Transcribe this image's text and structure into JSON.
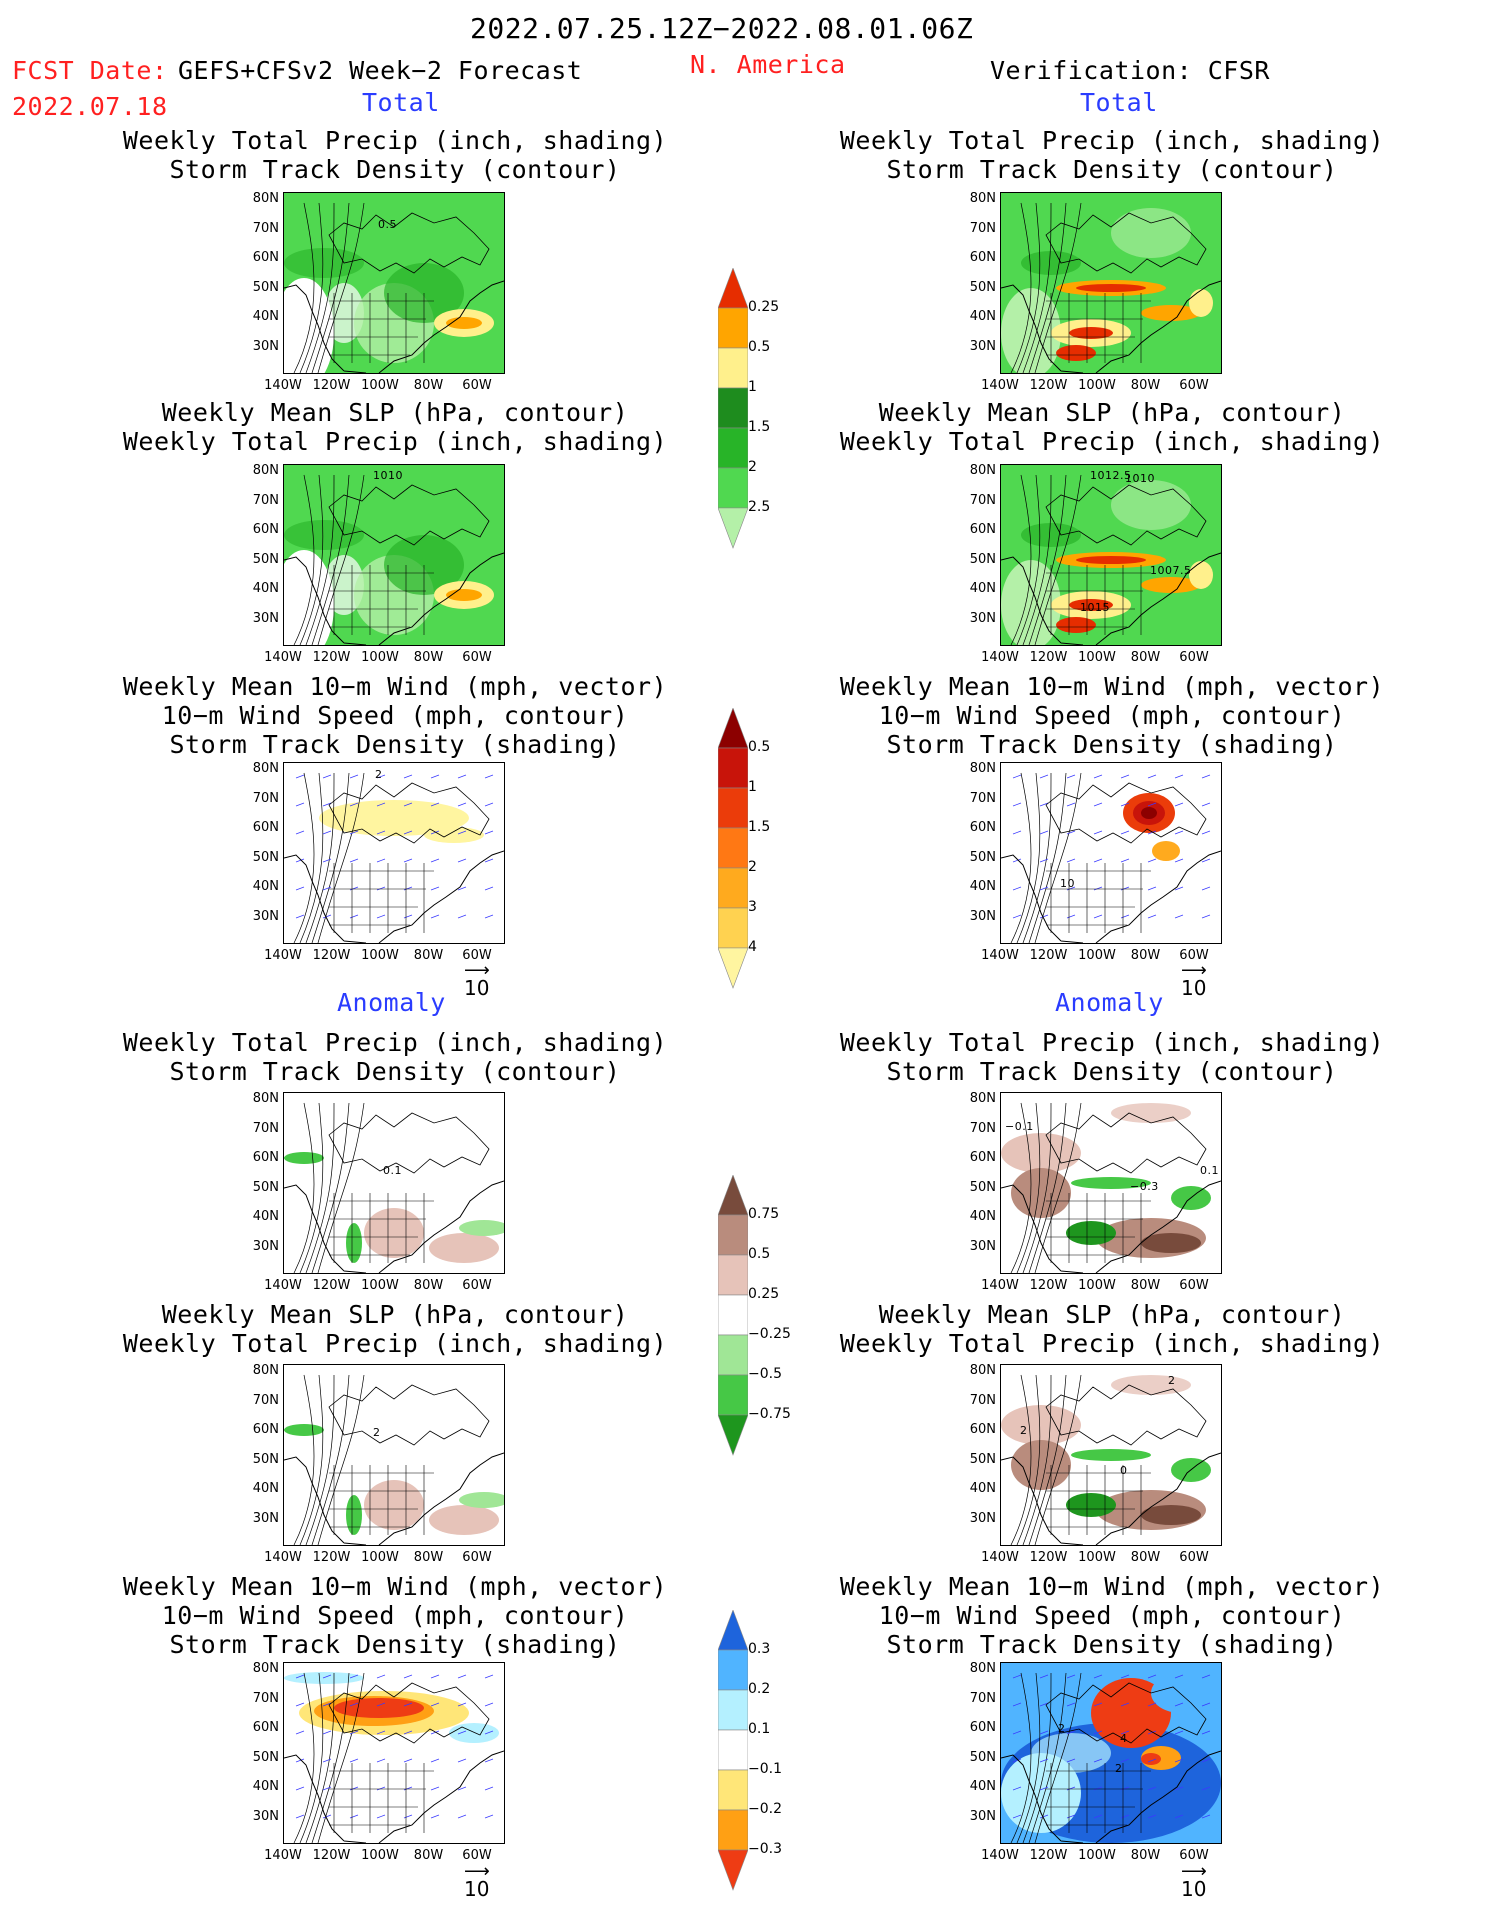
{
  "header": {
    "title": "2022.07.25.12Z−2022.08.01.06Z",
    "region": "N. America",
    "fcst_label": "FCST Date:",
    "fcst_model": "GEFS+CFSv2 Week−2 Forecast",
    "fcst_date": "2022.07.18",
    "verif": "Verification: CFSR"
  },
  "sections": {
    "total": "Total",
    "anomaly": "Anomaly"
  },
  "panel_titles": {
    "precip_storm": [
      "Weekly Total Precip (inch, shading)",
      "Storm Track Density (contour)"
    ],
    "slp_precip": [
      "Weekly Mean SLP (hPa, contour)",
      "Weekly Total Precip (inch, shading)"
    ],
    "wind_storm": [
      "Weekly Mean 10−m Wind (mph, vector)",
      "10−m Wind Speed (mph, contour)",
      "Storm Track Density (shading)"
    ]
  },
  "axes": {
    "lat": [
      "80N",
      "70N",
      "60N",
      "50N",
      "40N",
      "30N"
    ],
    "lon": [
      "140W",
      "120W",
      "100W",
      "80W",
      "60W"
    ]
  },
  "vector_ref": "10",
  "contour_labels": {
    "fcst_precip": "0.5",
    "fcst_slp": "1010",
    "obs_slp_a": "1012.5",
    "obs_slp_b": "1010",
    "obs_slp_c": "1007.5",
    "obs_slp_d": "1015",
    "fcst_wind": "2",
    "obs_wind": "10",
    "fcst_anom_precip": "0.1",
    "obs_anom_precip_a": "−0.1",
    "obs_anom_precip_b": "−0.3",
    "obs_anom_precip_c": "0.1",
    "fcst_anom_slp": "2",
    "obs_anom_slp_a": "2",
    "obs_anom_slp_b": "0",
    "obs_anom_slp_c": "2",
    "obs_anom_wind_a": "2",
    "obs_anom_wind_b": "4",
    "obs_anom_wind_c": "2"
  },
  "colorbars": {
    "precip_total": {
      "labels": [
        "0.25",
        "0.5",
        "1",
        "1.5",
        "2",
        "2.5"
      ],
      "colors": [
        "#b4f0a8",
        "#50d850",
        "#28b428",
        "#1e8c1e",
        "#fff08c",
        "#ffa500",
        "#e62d00"
      ]
    },
    "storm_total": {
      "labels": [
        "0.5",
        "1",
        "1.5",
        "2",
        "3",
        "4"
      ],
      "colors": [
        "#fff5a0",
        "#ffd250",
        "#ffaa1e",
        "#ff7814",
        "#eb3c0a",
        "#c8140a",
        "#8c0000"
      ]
    },
    "precip_anom": {
      "labels": [
        "0.75",
        "0.5",
        "0.25",
        "−0.25",
        "−0.5",
        "−0.75"
      ],
      "colors": [
        "#1e961e",
        "#46c846",
        "#a0e696",
        "#ffffff",
        "#e6c3b9",
        "#b98c7d",
        "#784b3c"
      ]
    },
    "storm_anom": {
      "labels": [
        "0.3",
        "0.2",
        "0.1",
        "−0.1",
        "−0.2",
        "−0.3"
      ],
      "colors": [
        "#ee3c14",
        "#ffa014",
        "#ffe678",
        "#ffffff",
        "#b4f0ff",
        "#50b4ff",
        "#1e64dc"
      ]
    }
  },
  "chart_data": [
    {
      "type": "heatmap",
      "panel": "Forecast Total: Weekly Total Precip / Storm Track Density",
      "shading": "precip_total",
      "xlabels": [
        "140W",
        "120W",
        "100W",
        "80W",
        "60W"
      ],
      "ylabels": [
        "80N",
        "70N",
        "60N",
        "50N",
        "40N",
        "30N"
      ]
    },
    {
      "type": "heatmap",
      "panel": "Verification Total: Weekly Total Precip / Storm Track Density",
      "shading": "precip_total",
      "xlabels": [
        "140W",
        "120W",
        "100W",
        "80W",
        "60W"
      ],
      "ylabels": [
        "80N",
        "70N",
        "60N",
        "50N",
        "40N",
        "30N"
      ]
    },
    {
      "type": "heatmap",
      "panel": "Forecast Total: Weekly Mean SLP / Weekly Total Precip",
      "shading": "precip_total",
      "xlabels": [
        "140W",
        "120W",
        "100W",
        "80W",
        "60W"
      ],
      "ylabels": [
        "80N",
        "70N",
        "60N",
        "50N",
        "40N",
        "30N"
      ]
    },
    {
      "type": "heatmap",
      "panel": "Verification Total: Weekly Mean SLP / Weekly Total Precip",
      "shading": "precip_total",
      "xlabels": [
        "140W",
        "120W",
        "100W",
        "80W",
        "60W"
      ],
      "ylabels": [
        "80N",
        "70N",
        "60N",
        "50N",
        "40N",
        "30N"
      ]
    },
    {
      "type": "heatmap",
      "panel": "Forecast Total: 10-m Wind / Storm Track Density",
      "shading": "storm_total",
      "xlabels": [
        "140W",
        "120W",
        "100W",
        "80W",
        "60W"
      ],
      "ylabels": [
        "80N",
        "70N",
        "60N",
        "50N",
        "40N",
        "30N"
      ]
    },
    {
      "type": "heatmap",
      "panel": "Verification Total: 10-m Wind / Storm Track Density",
      "shading": "storm_total",
      "xlabels": [
        "140W",
        "120W",
        "100W",
        "80W",
        "60W"
      ],
      "ylabels": [
        "80N",
        "70N",
        "60N",
        "50N",
        "40N",
        "30N"
      ]
    },
    {
      "type": "heatmap",
      "panel": "Forecast Anomaly: Weekly Total Precip / Storm Track Density",
      "shading": "precip_anom",
      "xlabels": [
        "140W",
        "120W",
        "100W",
        "80W",
        "60W"
      ],
      "ylabels": [
        "80N",
        "70N",
        "60N",
        "50N",
        "40N",
        "30N"
      ]
    },
    {
      "type": "heatmap",
      "panel": "Verification Anomaly: Weekly Total Precip / Storm Track Density",
      "shading": "precip_anom",
      "xlabels": [
        "140W",
        "120W",
        "100W",
        "80W",
        "60W"
      ],
      "ylabels": [
        "80N",
        "70N",
        "60N",
        "50N",
        "40N",
        "30N"
      ]
    },
    {
      "type": "heatmap",
      "panel": "Forecast Anomaly: Weekly Mean SLP / Weekly Total Precip",
      "shading": "precip_anom",
      "xlabels": [
        "140W",
        "120W",
        "100W",
        "80W",
        "60W"
      ],
      "ylabels": [
        "80N",
        "70N",
        "60N",
        "50N",
        "40N",
        "30N"
      ]
    },
    {
      "type": "heatmap",
      "panel": "Verification Anomaly: Weekly Mean SLP / Weekly Total Precip",
      "shading": "precip_anom",
      "xlabels": [
        "140W",
        "120W",
        "100W",
        "80W",
        "60W"
      ],
      "ylabels": [
        "80N",
        "70N",
        "60N",
        "50N",
        "40N",
        "30N"
      ]
    },
    {
      "type": "heatmap",
      "panel": "Forecast Anomaly: 10-m Wind / Storm Track Density",
      "shading": "storm_anom",
      "xlabels": [
        "140W",
        "120W",
        "100W",
        "80W",
        "60W"
      ],
      "ylabels": [
        "80N",
        "70N",
        "60N",
        "50N",
        "40N",
        "30N"
      ]
    },
    {
      "type": "heatmap",
      "panel": "Verification Anomaly: 10-m Wind / Storm Track Density",
      "shading": "storm_anom",
      "xlabels": [
        "140W",
        "120W",
        "100W",
        "80W",
        "60W"
      ],
      "ylabels": [
        "80N",
        "70N",
        "60N",
        "50N",
        "40N",
        "30N"
      ]
    }
  ]
}
